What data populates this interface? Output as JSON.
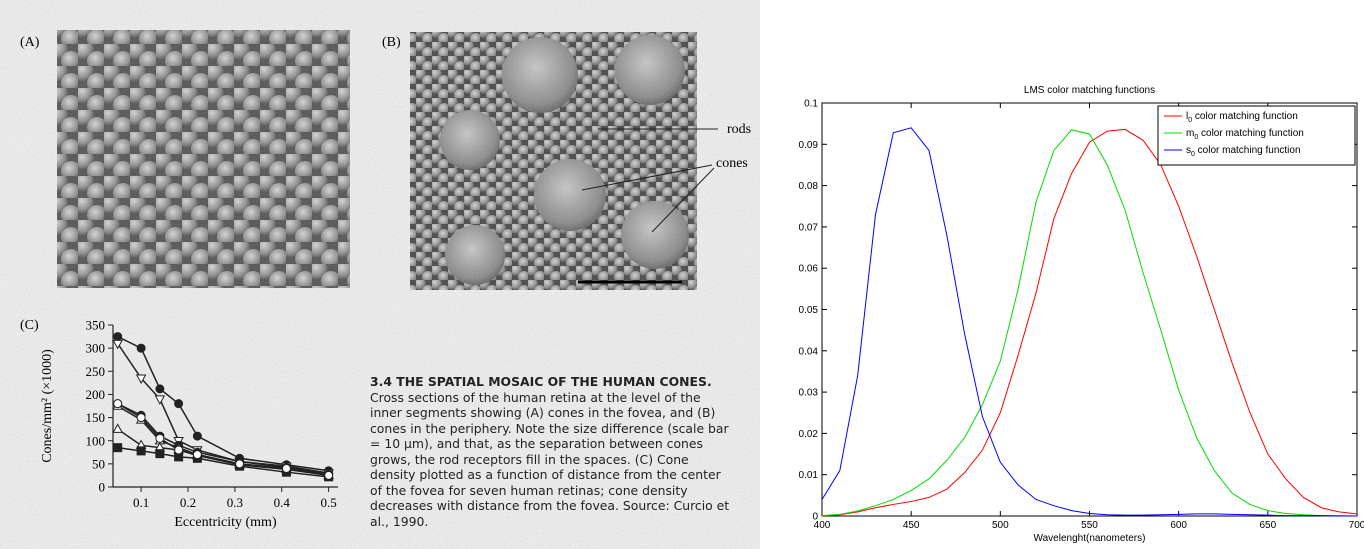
{
  "figure": {
    "label_a": "(A)",
    "label_b": "(B)",
    "rods": "rods",
    "cones": "cones",
    "label_c": "(C)",
    "caption_heading": "3.4 THE SPATIAL MOSAIC OF THE HUMAN CONES.",
    "caption_text": "Cross sections of the human retina at the level of the inner segments showing (A) cones in the fovea, and (B) cones in the periphery. Note the size difference (scale bar = 10 μm), and that, as the separation between cones grows, the rod receptors fill in the spaces. (C) Cone density plotted as a function of distance from the center of the fovea for seven human retinas; cone density decreases with distance from the fovea. Source: Curcio et al., 1990."
  },
  "chart_data": [
    {
      "type": "line",
      "box": false,
      "xlabel": "Eccentricity (mm)",
      "ylabel": "Cones/mm² (×1000)",
      "x": [
        0.05,
        0.1,
        0.14,
        0.18,
        0.22,
        0.31,
        0.41,
        0.5
      ],
      "xlim": [
        0.04,
        0.52
      ],
      "xticks": [
        0.1,
        0.2,
        0.3,
        0.4,
        0.5
      ],
      "ylim": [
        0,
        350
      ],
      "yticks": [
        0,
        50,
        100,
        150,
        200,
        250,
        300,
        350
      ],
      "series": [
        {
          "color": "#222222",
          "marker": "circle",
          "marker_fill": true,
          "values": [
            325,
            300,
            212,
            180,
            110,
            62,
            48,
            35
          ]
        },
        {
          "color": "#222222",
          "marker": "triangle-down",
          "marker_fill": false,
          "values": [
            310,
            235,
            190,
            100,
            80,
            55,
            45,
            30
          ]
        },
        {
          "color": "#222222",
          "marker": "circle",
          "marker_fill": true,
          "values": [
            180,
            155,
            110,
            90,
            75,
            55,
            42,
            28
          ]
        },
        {
          "color": "#222222",
          "marker": "triangle-up",
          "marker_fill": false,
          "values": [
            175,
            145,
            100,
            85,
            70,
            50,
            40,
            25
          ]
        },
        {
          "color": "#222222",
          "marker": "triangle-up",
          "marker_fill": false,
          "values": [
            125,
            90,
            85,
            80,
            68,
            48,
            38,
            25
          ]
        },
        {
          "color": "#222222",
          "marker": "square",
          "marker_fill": true,
          "values": [
            85,
            78,
            72,
            65,
            62,
            45,
            32,
            22
          ]
        },
        {
          "color": "#222222",
          "marker": "circle",
          "marker_fill": false,
          "values": [
            180,
            150,
            105,
            80,
            70,
            50,
            40,
            25
          ]
        }
      ]
    },
    {
      "type": "line",
      "box": true,
      "title": "LMS color matching functions",
      "xlabel": "Wavelenght(nanometers)",
      "x": [
        400,
        410,
        420,
        430,
        440,
        450,
        460,
        470,
        480,
        490,
        500,
        510,
        520,
        530,
        540,
        550,
        560,
        570,
        580,
        590,
        600,
        610,
        620,
        630,
        640,
        650,
        660,
        670,
        680,
        690,
        700
      ],
      "xlim": [
        400,
        700
      ],
      "xticks": [
        400,
        450,
        500,
        550,
        600,
        650,
        700
      ],
      "ylim": [
        0,
        0.1
      ],
      "yticks": [
        0,
        0.01,
        0.02,
        0.03,
        0.04,
        0.05,
        0.06,
        0.07,
        0.08,
        0.09,
        0.1
      ],
      "legend": "upper right",
      "series": [
        {
          "name": "l0 color matching function",
          "color": "#ff0000",
          "values": [
            0.0001,
            0.0003,
            0.001,
            0.002,
            0.0028,
            0.0035,
            0.0045,
            0.0065,
            0.0105,
            0.016,
            0.025,
            0.039,
            0.054,
            0.072,
            0.083,
            0.0905,
            0.0932,
            0.0936,
            0.091,
            0.085,
            0.075,
            0.063,
            0.05,
            0.037,
            0.025,
            0.015,
            0.009,
            0.0045,
            0.002,
            0.001,
            0.0005
          ]
        },
        {
          "name": "m0 color matching function",
          "color": "#00dd00",
          "values": [
            0.0001,
            0.0004,
            0.0012,
            0.0025,
            0.004,
            0.0062,
            0.009,
            0.0135,
            0.019,
            0.027,
            0.0375,
            0.055,
            0.076,
            0.0885,
            0.0935,
            0.0925,
            0.085,
            0.074,
            0.059,
            0.045,
            0.0305,
            0.019,
            0.011,
            0.0055,
            0.0028,
            0.0013,
            0.0006,
            0.0003,
            0.0001,
            0.0001,
            0
          ]
        },
        {
          "name": "s0 color matching function",
          "color": "#0000ff",
          "values": [
            0.004,
            0.011,
            0.034,
            0.073,
            0.0928,
            0.094,
            0.0885,
            0.068,
            0.044,
            0.024,
            0.013,
            0.0075,
            0.004,
            0.0025,
            0.0013,
            0.0006,
            0.0003,
            0.0002,
            0.0002,
            0.0003,
            0.0004,
            0.0005,
            0.0005,
            0.0004,
            0.0003,
            0.0002,
            0.0001,
            0.0001,
            0.0001,
            0,
            0
          ]
        }
      ]
    }
  ]
}
